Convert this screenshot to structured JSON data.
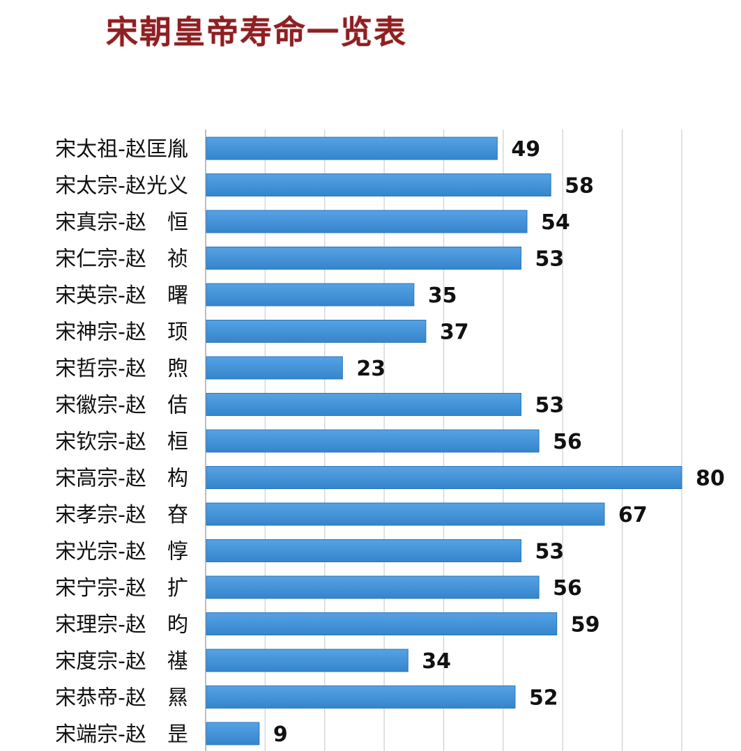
{
  "title": "宋朝皇帝寿命一览表",
  "colors": {
    "bar": "#3f8fd6",
    "bar_edge": "#2a74bd",
    "grid": "#d2d2d2",
    "title": "#8e1f22"
  },
  "chart_data": {
    "type": "bar",
    "orientation": "horizontal",
    "title": "宋朝皇帝寿命一览表",
    "xlabel": "",
    "ylabel": "",
    "xlim": [
      0,
      80
    ],
    "grid": true,
    "categories": [
      "宋太祖-赵匡胤",
      "宋太宗-赵光义",
      "宋真宗-赵　恒",
      "宋仁宗-赵　祯",
      "宋英宗-赵　曙",
      "宋神宗-赵　顼",
      "宋哲宗-赵　煦",
      "宋徽宗-赵　佶",
      "宋钦宗-赵　桓",
      "宋高宗-赵　构",
      "宋孝宗-赵　昚",
      "宋光宗-赵　惇",
      "宋宁宗-赵　扩",
      "宋理宗-赵　昀",
      "宋度宗-赵　禥",
      "宋恭帝-赵　㬎",
      "宋端宗-赵　昰"
    ],
    "values": [
      49,
      58,
      54,
      53,
      35,
      37,
      23,
      53,
      56,
      80,
      67,
      53,
      56,
      59,
      34,
      52,
      9
    ]
  }
}
